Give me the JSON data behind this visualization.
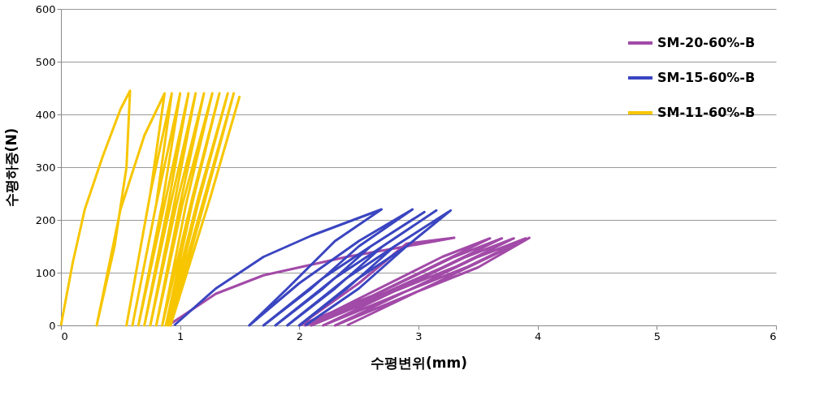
{
  "chart_data": {
    "type": "line",
    "xlabel": "수평변위(mm)",
    "ylabel": "수평하중(N)",
    "xlim": [
      0,
      6
    ],
    "ylim": [
      0,
      600
    ],
    "xticks": [
      0,
      1,
      2,
      3,
      4,
      5,
      6
    ],
    "yticks": [
      0,
      100,
      200,
      300,
      400,
      500,
      600
    ],
    "grid": "y",
    "legend": "top right",
    "line_style": "solid",
    "marker": "none",
    "series": [
      {
        "name": "SM-20-60%-B",
        "color": "#a24aa8",
        "x": [
          0.9,
          1.3,
          1.7,
          2.0,
          2.4,
          2.9,
          3.3,
          2.9,
          2.5,
          2.0,
          2.6,
          3.1,
          3.6,
          3.2,
          2.05,
          2.7,
          3.2,
          3.7,
          3.3,
          2.1,
          2.8,
          3.3,
          3.8,
          3.4,
          2.2,
          2.9,
          3.4,
          3.9,
          3.5,
          2.3,
          3.0,
          3.5,
          3.93,
          3.6,
          2.4
        ],
        "values": [
          0,
          60,
          95,
          110,
          130,
          150,
          166,
          155,
          80,
          0,
          55,
          110,
          165,
          130,
          0,
          60,
          110,
          165,
          130,
          0,
          65,
          110,
          165,
          130,
          0,
          65,
          110,
          165,
          130,
          0,
          65,
          110,
          166,
          130,
          0
        ]
      },
      {
        "name": "SM-15-60%-B",
        "color": "#3a45c0",
        "x": [
          0.95,
          1.3,
          1.7,
          2.1,
          2.69,
          2.3,
          1.9,
          1.58,
          2.0,
          2.5,
          2.95,
          2.5,
          2.1,
          1.7,
          2.2,
          2.6,
          3.05,
          2.6,
          2.2,
          1.8,
          2.3,
          2.7,
          3.15,
          2.7,
          2.3,
          1.9,
          2.4,
          2.8,
          3.25,
          2.8,
          2.4,
          2.0,
          2.5,
          2.9,
          3.27,
          2.9,
          2.5,
          2.05
        ],
        "values": [
          0,
          70,
          130,
          170,
          220,
          160,
          70,
          0,
          80,
          160,
          220,
          150,
          70,
          0,
          90,
          150,
          215,
          150,
          70,
          0,
          90,
          150,
          218,
          150,
          70,
          0,
          90,
          150,
          215,
          150,
          70,
          0,
          90,
          150,
          218,
          150,
          70,
          0
        ]
      },
      {
        "name": "SM-11-60%-B",
        "color": "#f7c600",
        "x": [
          0,
          0.1,
          0.2,
          0.35,
          0.5,
          0.58,
          0.55,
          0.45,
          0.3,
          0.5,
          0.7,
          0.87,
          0.75,
          0.55,
          0.75,
          0.93,
          0.8,
          0.6,
          0.8,
          1.0,
          0.85,
          0.65,
          0.87,
          1.07,
          0.9,
          0.7,
          0.92,
          1.13,
          0.95,
          0.75,
          0.97,
          1.2,
          1.0,
          0.8,
          1.02,
          1.27,
          1.05,
          0.85,
          1.1,
          1.33,
          1.1,
          0.88,
          1.15,
          1.4,
          1.15,
          0.9,
          1.2,
          1.45,
          1.2,
          0.92,
          1.25,
          1.5
        ],
        "values": [
          0,
          120,
          220,
          320,
          410,
          445,
          300,
          150,
          0,
          220,
          360,
          440,
          250,
          0,
          250,
          440,
          230,
          0,
          230,
          440,
          230,
          0,
          230,
          440,
          230,
          0,
          230,
          440,
          230,
          0,
          230,
          440,
          230,
          0,
          230,
          440,
          230,
          0,
          240,
          440,
          230,
          0,
          240,
          440,
          230,
          0,
          240,
          440,
          230,
          0,
          240,
          435
        ]
      }
    ]
  }
}
